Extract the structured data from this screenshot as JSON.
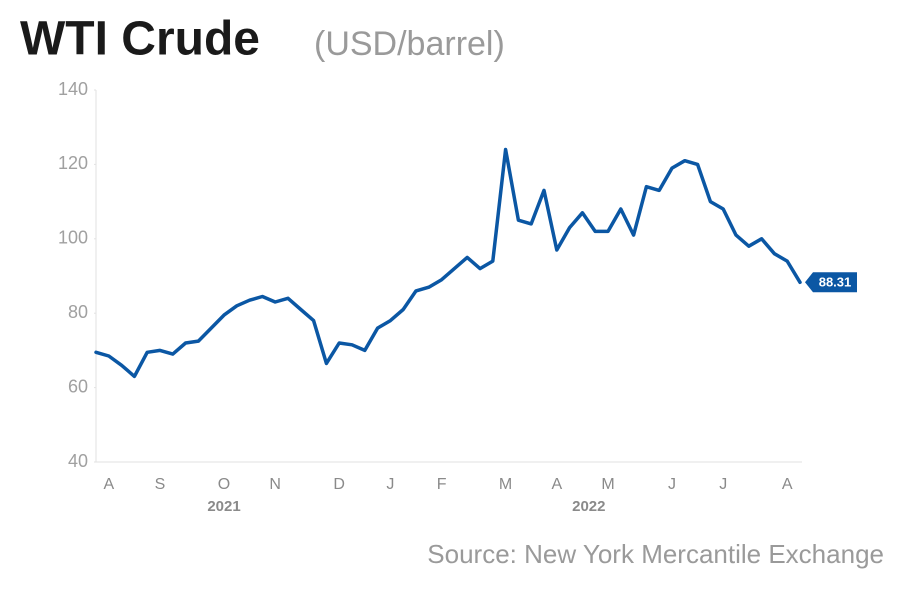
{
  "chart_data": {
    "type": "line",
    "title": "WTI Crude",
    "subtitle": "(USD/barrel)",
    "source": "Source: New York Mercantile Exchange",
    "categories": [
      null,
      "A",
      null,
      null,
      null,
      "S",
      null,
      null,
      null,
      null,
      "O",
      null,
      null,
      null,
      "N",
      null,
      null,
      null,
      null,
      "D",
      null,
      null,
      null,
      "J",
      null,
      null,
      null,
      "F",
      null,
      null,
      null,
      null,
      "M",
      null,
      null,
      null,
      "A",
      null,
      null,
      null,
      "M",
      null,
      null,
      null,
      null,
      "J",
      null,
      null,
      null,
      "J",
      null,
      null,
      null,
      null,
      "A",
      null
    ],
    "values": [
      69.5,
      68.5,
      66,
      63,
      69.5,
      70,
      69,
      72,
      72.5,
      76,
      79.5,
      82,
      83.5,
      84.5,
      83,
      84,
      81,
      78,
      66.5,
      72,
      71.5,
      70,
      76,
      78,
      81,
      86,
      87,
      89,
      92,
      95,
      92,
      94,
      124,
      105,
      104,
      113,
      97,
      103,
      107,
      102,
      102,
      108,
      101,
      114,
      113,
      119,
      121,
      120,
      110,
      108,
      101,
      98,
      100,
      96,
      94,
      88.31
    ],
    "x_groups": [
      {
        "label": "2021",
        "ticks": 5
      },
      {
        "label": "2022",
        "ticks": 8
      }
    ],
    "color": "#0b57a4",
    "ylim": [
      40,
      140
    ],
    "yticks": [
      40,
      60,
      80,
      100,
      120,
      140
    ]
  }
}
